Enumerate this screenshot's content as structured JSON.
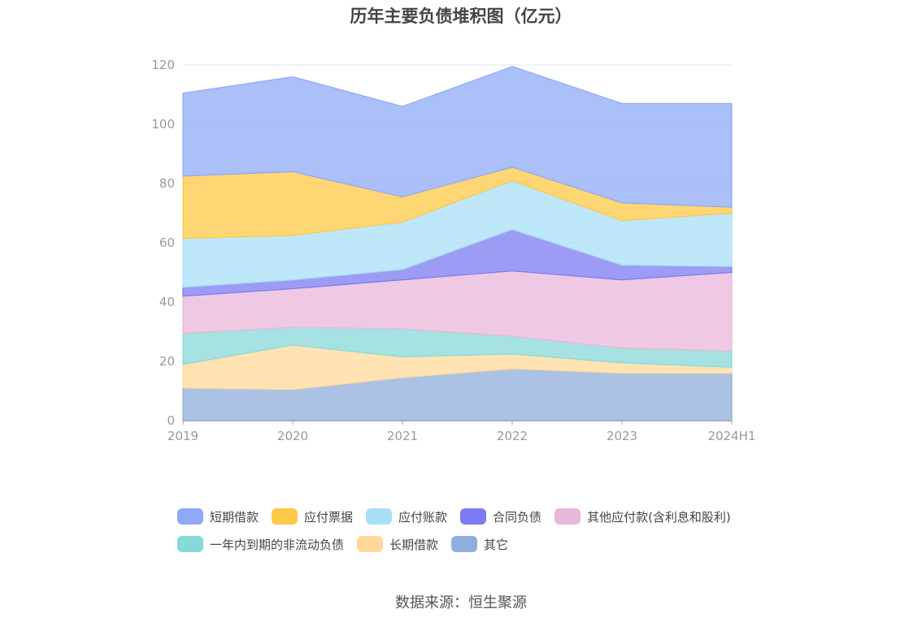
{
  "chart_data": {
    "type": "area",
    "stacked": true,
    "title": "历年主要负债堆积图（亿元）",
    "categories": [
      "2019",
      "2020",
      "2021",
      "2022",
      "2023",
      "2024H1"
    ],
    "ylim": [
      0,
      120
    ],
    "yticks": [
      0,
      20,
      40,
      60,
      80,
      100,
      120
    ],
    "grid": true,
    "legend_position": "bottom",
    "series": [
      {
        "name": "其它",
        "color": "#8faedb",
        "values": [
          11,
          10.5,
          14.5,
          17.5,
          16,
          16
        ]
      },
      {
        "name": "长期借款",
        "color": "#ffd99a",
        "values": [
          8,
          15,
          7,
          5,
          3.5,
          2
        ]
      },
      {
        "name": "一年内到期的非流动负债",
        "color": "#88d8d8",
        "values": [
          10.5,
          6,
          9.5,
          6,
          5,
          5.5
        ]
      },
      {
        "name": "其他应付款(含利息和股利)",
        "color": "#e9b7db",
        "values": [
          12.5,
          13,
          16.5,
          22,
          23,
          26.5
        ]
      },
      {
        "name": "合同负债",
        "color": "#7b7bf2",
        "values": [
          3,
          3,
          3.5,
          14,
          5,
          2
        ]
      },
      {
        "name": "应付账款",
        "color": "#a8dff7",
        "values": [
          16.5,
          15,
          16,
          16.5,
          15,
          18
        ]
      },
      {
        "name": "应付票据",
        "color": "#ffc846",
        "values": [
          21,
          21.5,
          8.5,
          4.5,
          6,
          2
        ]
      },
      {
        "name": "短期借款",
        "color": "#8fa9f7",
        "values": [
          28,
          32,
          30.5,
          34,
          33.5,
          35
        ]
      }
    ],
    "legend_order": [
      "短期借款",
      "应付票据",
      "应付账款",
      "合同负债",
      "其他应付款(含利息和股利)",
      "一年内到期的非流动负债",
      "长期借款",
      "其它"
    ]
  },
  "source": "数据来源：恒生聚源"
}
